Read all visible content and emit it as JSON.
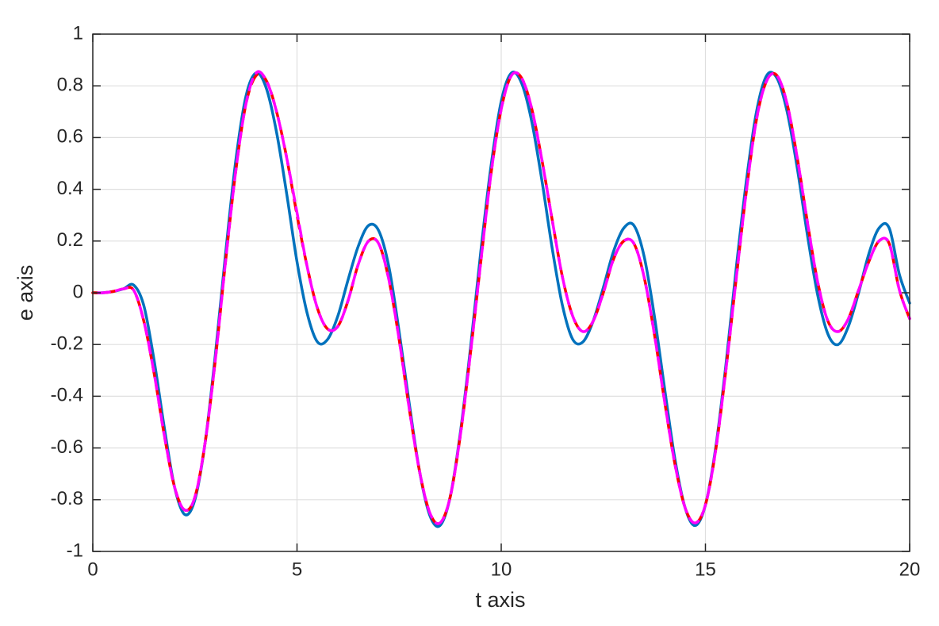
{
  "chart_data": {
    "type": "line",
    "xlabel": "t axis",
    "ylabel": "e axis",
    "xlim": [
      0,
      20
    ],
    "ylim": [
      -1,
      1
    ],
    "xticks": [
      0,
      5,
      10,
      15,
      20
    ],
    "yticks": [
      -1,
      -0.8,
      -0.6,
      -0.4,
      -0.2,
      0,
      0.2,
      0.4,
      0.6,
      0.8,
      1
    ],
    "grid": true,
    "x": [
      0,
      0.25,
      0.5,
      0.75,
      1,
      1.25,
      1.5,
      1.75,
      2,
      2.25,
      2.5,
      2.75,
      3,
      3.25,
      3.5,
      3.75,
      4,
      4.25,
      4.5,
      4.75,
      5,
      5.25,
      5.5,
      5.75,
      6,
      6.25,
      6.5,
      6.75,
      7,
      7.25,
      7.5,
      7.75,
      8,
      8.25,
      8.5,
      8.75,
      9,
      9.25,
      9.5,
      9.75,
      10,
      10.25,
      10.5,
      10.75,
      11,
      11.25,
      11.5,
      11.75,
      12,
      12.25,
      12.5,
      12.75,
      13,
      13.25,
      13.5,
      13.75,
      14,
      14.25,
      14.5,
      14.75,
      15,
      15.25,
      15.5,
      15.75,
      16,
      16.25,
      16.5,
      16.75,
      17,
      17.25,
      17.5,
      17.75,
      18,
      18.25,
      18.5,
      18.75,
      19,
      19.25,
      19.5,
      19.75,
      20
    ],
    "series": [
      {
        "color": "#0072bd",
        "linestyle": "solid",
        "values": [
          0,
          0,
          0.005,
          0.015,
          0.03,
          -0.05,
          -0.26,
          -0.52,
          -0.75,
          -0.857,
          -0.8,
          -0.58,
          -0.24,
          0.15,
          0.51,
          0.76,
          0.85,
          0.79,
          0.62,
          0.38,
          0.12,
          -0.08,
          -0.19,
          -0.18,
          -0.09,
          0.05,
          0.18,
          0.26,
          0.24,
          0.1,
          -0.15,
          -0.43,
          -0.69,
          -0.86,
          -0.9,
          -0.79,
          -0.54,
          -0.21,
          0.16,
          0.49,
          0.74,
          0.85,
          0.81,
          0.66,
          0.43,
          0.17,
          -0.05,
          -0.18,
          -0.19,
          -0.11,
          0.02,
          0.16,
          0.25,
          0.26,
          0.14,
          -0.09,
          -0.37,
          -0.64,
          -0.83,
          -0.9,
          -0.82,
          -0.6,
          -0.28,
          0.09,
          0.43,
          0.7,
          0.84,
          0.83,
          0.7,
          0.48,
          0.22,
          -0.01,
          -0.16,
          -0.2,
          -0.13,
          0,
          0.15,
          0.25,
          0.25,
          0.07,
          -0.04
        ]
      },
      {
        "color": "#ff0000",
        "linestyle": "dashed",
        "values": [
          0,
          0,
          0.005,
          0.015,
          0.01,
          -0.11,
          -0.31,
          -0.55,
          -0.75,
          -0.84,
          -0.79,
          -0.58,
          -0.26,
          0.12,
          0.47,
          0.73,
          0.84,
          0.82,
          0.7,
          0.52,
          0.3,
          0.1,
          -0.06,
          -0.14,
          -0.13,
          -0.03,
          0.11,
          0.2,
          0.19,
          0.05,
          -0.18,
          -0.45,
          -0.69,
          -0.85,
          -0.89,
          -0.79,
          -0.55,
          -0.23,
          0.12,
          0.46,
          0.71,
          0.84,
          0.83,
          0.71,
          0.51,
          0.28,
          0.06,
          -0.09,
          -0.15,
          -0.11,
          0,
          0.13,
          0.2,
          0.19,
          0.06,
          -0.16,
          -0.42,
          -0.66,
          -0.83,
          -0.89,
          -0.82,
          -0.61,
          -0.3,
          0.05,
          0.39,
          0.67,
          0.82,
          0.84,
          0.73,
          0.52,
          0.27,
          0.04,
          -0.11,
          -0.15,
          -0.1,
          0.01,
          0.12,
          0.2,
          0.19,
          0.01,
          -0.1
        ]
      },
      {
        "color": "#ff00ff",
        "linestyle": "dashed",
        "values": [
          0,
          0,
          0.005,
          0.015,
          0.01,
          -0.11,
          -0.31,
          -0.55,
          -0.75,
          -0.84,
          -0.79,
          -0.58,
          -0.26,
          0.12,
          0.47,
          0.73,
          0.85,
          0.82,
          0.7,
          0.52,
          0.31,
          0.1,
          -0.06,
          -0.14,
          -0.13,
          -0.03,
          0.11,
          0.2,
          0.19,
          0.05,
          -0.18,
          -0.45,
          -0.69,
          -0.85,
          -0.89,
          -0.79,
          -0.55,
          -0.23,
          0.12,
          0.46,
          0.71,
          0.84,
          0.83,
          0.71,
          0.51,
          0.28,
          0.06,
          -0.09,
          -0.15,
          -0.11,
          0,
          0.13,
          0.2,
          0.19,
          0.06,
          -0.16,
          -0.42,
          -0.66,
          -0.83,
          -0.89,
          -0.82,
          -0.61,
          -0.3,
          0.05,
          0.39,
          0.67,
          0.82,
          0.84,
          0.73,
          0.52,
          0.27,
          0.04,
          -0.11,
          -0.15,
          -0.1,
          0.01,
          0.12,
          0.2,
          0.19,
          0.01,
          -0.1
        ]
      }
    ]
  }
}
